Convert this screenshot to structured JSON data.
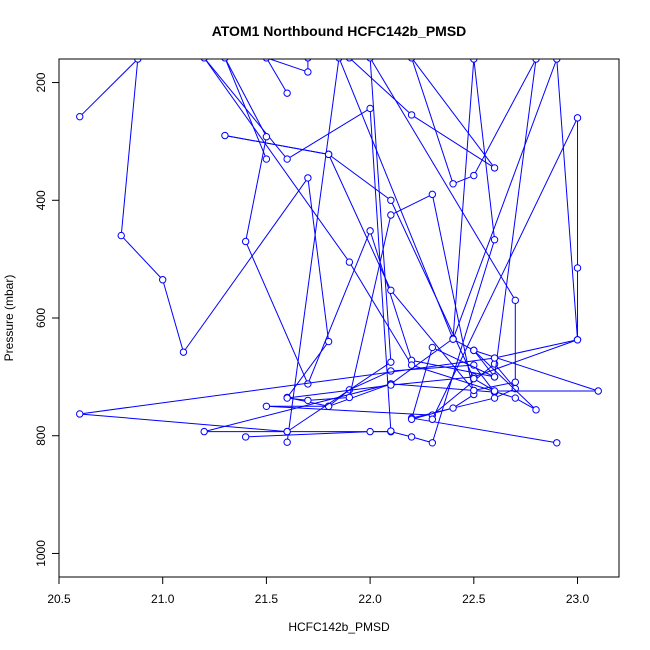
{
  "chart_data": {
    "type": "line",
    "title": "ATOM1 Northbound HCFC142b_PMSD",
    "xlabel": "HCFC142b_PMSD",
    "ylabel": "Pressure (mbar)",
    "xlim": [
      20.5,
      23.2
    ],
    "ylim": [
      1040,
      160
    ],
    "y_reversed": true,
    "x_ticks": [
      20.5,
      21.0,
      21.5,
      22.0,
      22.5,
      23.0
    ],
    "x_tick_labels": [
      "20.5",
      "21.0",
      "21.5",
      "22.0",
      "22.5",
      "23.0"
    ],
    "y_ticks": [
      200,
      400,
      600,
      800,
      1000
    ],
    "y_tick_labels": [
      "200",
      "400",
      "600",
      "800",
      "1000"
    ],
    "grid": false,
    "series_color": "#0000ff",
    "series": [
      {
        "x": [
          20.6,
          20.88,
          20.8,
          21.0,
          21.1,
          21.7,
          21.8,
          21.6,
          21.8,
          21.9,
          22.1,
          22.5,
          22.6,
          22.1,
          21.2,
          21.6,
          22.1
        ],
        "y": [
          258,
          160,
          460,
          535,
          658,
          362,
          640,
          735,
          750,
          722,
          690,
          680,
          726,
          712,
          793,
          793,
          793
        ]
      },
      {
        "x": [
          21.4,
          22.0,
          22.1,
          22.2,
          22.3,
          22.6,
          22.5,
          22.4,
          22.1,
          21.8,
          21.5,
          22.3,
          22.6,
          22.7,
          22.6,
          22.2,
          22.9
        ],
        "y": [
          802,
          793,
          793,
          802,
          812,
          467,
          160,
          635,
          712,
          750,
          750,
          765,
          678,
          720,
          736,
          770,
          812
        ]
      },
      {
        "x": [
          21.5,
          21.3,
          21.5,
          21.4,
          21.7,
          22.0,
          22.2,
          22.6,
          22.5,
          22.8,
          22.7,
          22.2,
          21.9,
          21.2,
          21.6,
          22.0,
          22.1
        ],
        "y": [
          330,
          158,
          292,
          470,
          712,
          452,
          672,
          700,
          655,
          756,
          736,
          680,
          505,
          158,
          330,
          244,
          792
        ]
      },
      {
        "x": [
          21.6,
          21.5,
          21.7,
          21.7,
          21.9,
          22.2,
          22.6,
          22.2,
          22.4,
          22.5,
          22.8,
          22.6,
          22.3,
          22.2,
          22.4,
          22.5,
          22.3,
          22.1,
          21.9,
          21.7,
          21.6,
          22.1,
          22.5,
          23.0,
          23.0,
          23.0,
          22.3
        ],
        "y": [
          218,
          158,
          182,
          158,
          158,
          255,
          345,
          158,
          372,
          358,
          160,
          700,
          650,
          772,
          753,
          730,
          390,
          425,
          735,
          740,
          736,
          714,
          700,
          637,
          515,
          260,
          772
        ]
      },
      {
        "x": [
          21.6,
          21.85,
          22.4,
          22.5,
          23.1,
          22.6,
          22.5,
          22.1,
          21.8,
          21.3,
          21.8,
          22.1,
          22.5,
          22.7,
          22.7,
          22.0,
          22.1,
          21.6,
          20.6,
          22.6,
          23.0,
          22.9,
          22.4
        ],
        "y": [
          811,
          158,
          636,
          655,
          724,
          724,
          703,
          400,
          322,
          290,
          322,
          553,
          723,
          709,
          570,
          158,
          675,
          793,
          763,
          668,
          637,
          160,
          636
        ]
      }
    ]
  }
}
